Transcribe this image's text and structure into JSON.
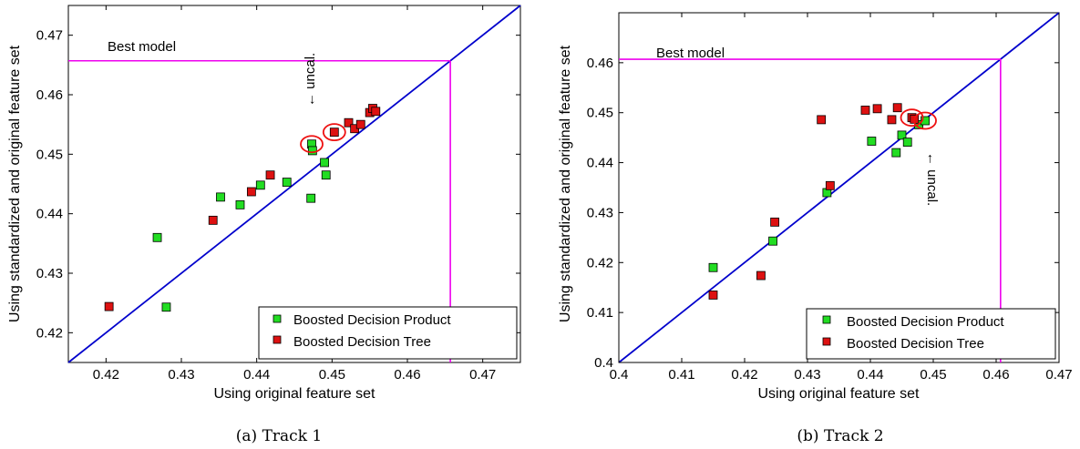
{
  "colors": {
    "bdp": "#22dd22",
    "bdt": "#dd1111",
    "diagonal": "#0000cc",
    "best": "#ee00ee",
    "circle": "#ee1111"
  },
  "chart_data": [
    {
      "type": "scatter",
      "caption": "(a)  Track 1",
      "xlabel": "Using original feature set",
      "ylabel": "Using standardized and original feature set",
      "xlim": [
        0.415,
        0.475
      ],
      "ylim": [
        0.415,
        0.475
      ],
      "xticks": [
        "0.42",
        "0.43",
        "0.44",
        "0.45",
        "0.46",
        "0.47"
      ],
      "yticks": [
        "0.42",
        "0.43",
        "0.44",
        "0.45",
        "0.46",
        "0.47"
      ],
      "best_model": {
        "label": "Best model",
        "value": 0.4657
      },
      "uncal_label": "← uncal.",
      "legend": {
        "position": "bottom-right",
        "entries": [
          "Boosted Decision Product",
          "Boosted Decision Tree"
        ]
      },
      "series": [
        {
          "name": "Boosted Decision Product",
          "points": [
            [
              0.4268,
              0.436
            ],
            [
              0.428,
              0.4243
            ],
            [
              0.4352,
              0.4428
            ],
            [
              0.4378,
              0.4415
            ],
            [
              0.4405,
              0.4448
            ],
            [
              0.444,
              0.4453
            ],
            [
              0.4472,
              0.4426
            ],
            [
              0.449,
              0.4486
            ],
            [
              0.4492,
              0.4465
            ],
            [
              0.4473,
              0.4517
            ],
            [
              0.4474,
              0.4506
            ]
          ]
        },
        {
          "name": "Boosted Decision Tree",
          "points": [
            [
              0.4204,
              0.4244
            ],
            [
              0.4342,
              0.4389
            ],
            [
              0.4393,
              0.4437
            ],
            [
              0.4418,
              0.4465
            ],
            [
              0.4503,
              0.4537
            ],
            [
              0.4522,
              0.4553
            ],
            [
              0.453,
              0.4543
            ],
            [
              0.4538,
              0.455
            ],
            [
              0.455,
              0.457
            ],
            [
              0.4554,
              0.4577
            ],
            [
              0.4558,
              0.4572
            ]
          ]
        }
      ],
      "circled": [
        [
          0.4473,
          0.4517
        ],
        [
          0.4503,
          0.4537
        ]
      ]
    },
    {
      "type": "scatter",
      "caption": "(b)  Track 2",
      "xlabel": "Using original feature set",
      "ylabel": "Using standardized and original feature set",
      "xlim": [
        0.4,
        0.47
      ],
      "ylim": [
        0.4,
        0.47
      ],
      "xticks": [
        "0.4",
        "0.41",
        "0.42",
        "0.43",
        "0.44",
        "0.45",
        "0.46",
        "0.47"
      ],
      "yticks": [
        "0.4",
        "0.41",
        "0.42",
        "0.43",
        "0.44",
        "0.45",
        "0.46"
      ],
      "best_model": {
        "label": "Best model",
        "value": 0.4607
      },
      "uncal_label": "← uncal.",
      "legend": {
        "position": "bottom-right",
        "entries": [
          "Boosted Decision Product",
          "Boosted Decision Tree"
        ]
      },
      "series": [
        {
          "name": "Boosted Decision Product",
          "points": [
            [
              0.415,
              0.419
            ],
            [
              0.4245,
              0.4243
            ],
            [
              0.4331,
              0.434
            ],
            [
              0.4402,
              0.4443
            ],
            [
              0.4441,
              0.442
            ],
            [
              0.445,
              0.4455
            ],
            [
              0.4459,
              0.4441
            ],
            [
              0.4477,
              0.4476
            ],
            [
              0.4487,
              0.4484
            ]
          ]
        },
        {
          "name": "Boosted Decision Tree",
          "points": [
            [
              0.415,
              0.4135
            ],
            [
              0.4226,
              0.4174
            ],
            [
              0.4248,
              0.4281
            ],
            [
              0.4322,
              0.4486
            ],
            [
              0.4336,
              0.4354
            ],
            [
              0.4392,
              0.4505
            ],
            [
              0.4411,
              0.4508
            ],
            [
              0.4434,
              0.4486
            ],
            [
              0.4443,
              0.451
            ],
            [
              0.4466,
              0.449
            ],
            [
              0.447,
              0.4487
            ]
          ]
        }
      ],
      "circled": [
        [
          0.4466,
          0.449
        ],
        [
          0.4487,
          0.4484
        ]
      ]
    }
  ]
}
